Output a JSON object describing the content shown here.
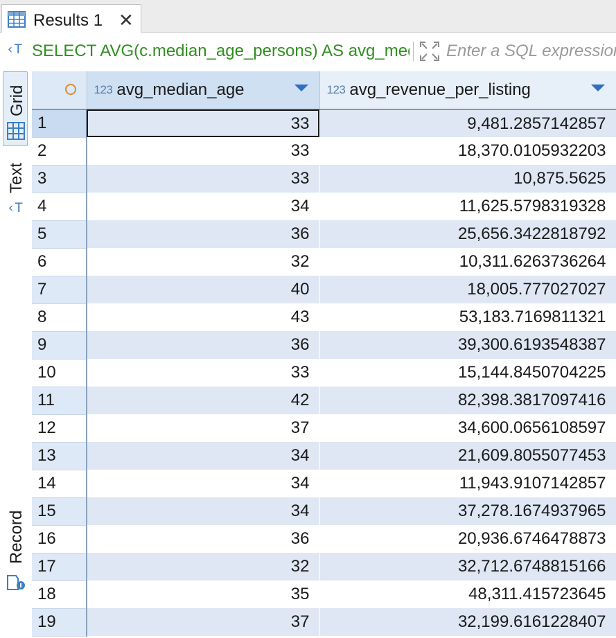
{
  "tab": {
    "label": "Results 1",
    "close": "✕",
    "icon": "table-icon"
  },
  "filter": {
    "sql_icon": "sql-icon",
    "sql": "SELECT AVG(c.median_age_persons) AS avg_median_age, AVG(revenue) AS avg_revenue_per_listing FROM",
    "placeholder": "Enter a SQL expression to filter results (use Ctrl+Space)",
    "expand_icon": "expand-icon"
  },
  "sidebar": {
    "grid_label": "Grid",
    "text_label": "Text",
    "record_label": "Record"
  },
  "grid": {
    "columns": [
      {
        "type": "123",
        "name": "avg_median_age"
      },
      {
        "type": "123",
        "name": "avg_revenue_per_listing"
      }
    ],
    "rows": [
      {
        "n": "1",
        "age": "33",
        "rev": "9,481.2857142857"
      },
      {
        "n": "2",
        "age": "33",
        "rev": "18,370.0105932203"
      },
      {
        "n": "3",
        "age": "33",
        "rev": "10,875.5625"
      },
      {
        "n": "4",
        "age": "34",
        "rev": "11,625.5798319328"
      },
      {
        "n": "5",
        "age": "36",
        "rev": "25,656.3422818792"
      },
      {
        "n": "6",
        "age": "32",
        "rev": "10,311.6263736264"
      },
      {
        "n": "7",
        "age": "40",
        "rev": "18,005.777027027"
      },
      {
        "n": "8",
        "age": "43",
        "rev": "53,183.7169811321"
      },
      {
        "n": "9",
        "age": "36",
        "rev": "39,300.6193548387"
      },
      {
        "n": "10",
        "age": "33",
        "rev": "15,144.8450704225"
      },
      {
        "n": "11",
        "age": "42",
        "rev": "82,398.3817097416"
      },
      {
        "n": "12",
        "age": "37",
        "rev": "34,600.0656108597"
      },
      {
        "n": "13",
        "age": "34",
        "rev": "21,609.8055077453"
      },
      {
        "n": "14",
        "age": "34",
        "rev": "11,943.9107142857"
      },
      {
        "n": "15",
        "age": "34",
        "rev": "37,278.1674937965"
      },
      {
        "n": "16",
        "age": "36",
        "rev": "20,936.6746478873"
      },
      {
        "n": "17",
        "age": "32",
        "rev": "32,712.6748815166"
      },
      {
        "n": "18",
        "age": "35",
        "rev": "48,311.415723645"
      },
      {
        "n": "19",
        "age": "37",
        "rev": "32,199.6161228407"
      }
    ]
  },
  "colors": {
    "accent": "#2f6fbf",
    "sql_text": "#2f8f1f",
    "row_stripe": "#dee7f3",
    "header": "#dde9f6"
  }
}
